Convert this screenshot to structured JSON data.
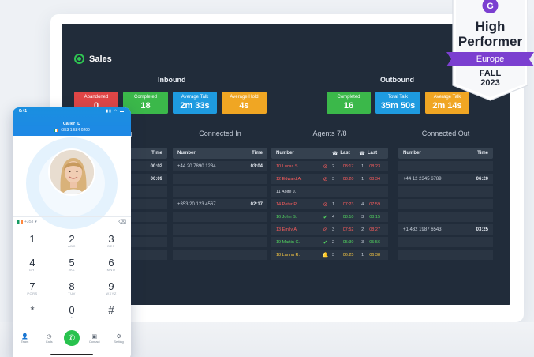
{
  "dashboard": {
    "title": "Sales",
    "inbound": {
      "title": "Inbound",
      "tiles": [
        {
          "label": "Abandoned",
          "value": "0",
          "color": "#e04646"
        },
        {
          "label": "Completed",
          "value": "18",
          "color": "#3bb84a"
        },
        {
          "label": "Average Talk",
          "value": "2m 33s",
          "color": "#1e9be0"
        },
        {
          "label": "Average Hold",
          "value": "4s",
          "color": "#f0a623"
        }
      ]
    },
    "outbound": {
      "title": "Outbound",
      "tiles": [
        {
          "label": "Completed",
          "value": "16",
          "color": "#3bb84a"
        },
        {
          "label": "Total Talk",
          "value": "35m 50s",
          "color": "#1e9be0"
        },
        {
          "label": "Average Talk",
          "value": "2m 14s",
          "color": "#f0a623"
        }
      ]
    },
    "waiting": {
      "title_visible": "g",
      "time_header": "Time",
      "rows": [
        "00:02",
        "00:09",
        "",
        "",
        "",
        "",
        "",
        ""
      ]
    },
    "connected_in": {
      "title": "Connected In",
      "headers": {
        "number": "Number",
        "time": "Time"
      },
      "rows": [
        {
          "number": "+44 20 7890 1234",
          "time": "03:04"
        },
        {
          "number": "",
          "time": ""
        },
        {
          "number": "",
          "time": ""
        },
        {
          "number": "+353 20 123 4567",
          "time": "02:17"
        },
        {
          "number": "",
          "time": ""
        },
        {
          "number": "",
          "time": ""
        },
        {
          "number": "",
          "time": ""
        },
        {
          "number": "",
          "time": ""
        }
      ]
    },
    "agents": {
      "title": "Agents 7/8",
      "headers": {
        "number": "Number",
        "last1": "Last",
        "last2": "Last"
      },
      "rows": [
        {
          "name": "10 Lucas S.",
          "status": "red",
          "icon": "⊘",
          "c1": "2",
          "t1": "08:17",
          "c2": "1",
          "t2": "08:23"
        },
        {
          "name": "12 Edward A.",
          "status": "red",
          "icon": "⊘",
          "c1": "3",
          "t1": "08:20",
          "c2": "1",
          "t2": "08:34"
        },
        {
          "name": "11 Aoife J.",
          "status": "wht",
          "icon": "",
          "c1": "",
          "t1": "",
          "c2": "",
          "t2": ""
        },
        {
          "name": "14 Peter P.",
          "status": "red",
          "icon": "⊘",
          "c1": "1",
          "t1": "07:23",
          "c2": "4",
          "t2": "07:59"
        },
        {
          "name": "16 John S.",
          "status": "grn",
          "icon": "✔",
          "c1": "4",
          "t1": "08:10",
          "c2": "3",
          "t2": "08:15"
        },
        {
          "name": "13 Emily A.",
          "status": "red",
          "icon": "⊘",
          "c1": "3",
          "t1": "07:52",
          "c2": "2",
          "t2": "08:27"
        },
        {
          "name": "19 Martin G.",
          "status": "grn",
          "icon": "✔",
          "c1": "2",
          "t1": "05:30",
          "c2": "3",
          "t2": "05:56"
        },
        {
          "name": "18 Lanna R.",
          "status": "ylw",
          "icon": "🔔",
          "c1": "3",
          "t1": "06:25",
          "c2": "1",
          "t2": "06:38"
        }
      ]
    },
    "connected_out": {
      "title": "Connected Out",
      "headers": {
        "number": "Number",
        "time": "Time"
      },
      "rows": [
        {
          "number": "",
          "time": ""
        },
        {
          "number": "+44 12 2345 6789",
          "time": "06:20"
        },
        {
          "number": "",
          "time": ""
        },
        {
          "number": "",
          "time": ""
        },
        {
          "number": "",
          "time": ""
        },
        {
          "number": "+1 432 1987 6543",
          "time": "03:25"
        },
        {
          "number": "",
          "time": ""
        },
        {
          "number": "",
          "time": ""
        }
      ]
    }
  },
  "phone": {
    "time": "9:41",
    "caller_label": "Caller ID",
    "caller_number": "+353 1 584 0200",
    "input_prefix": "+353",
    "keys": [
      {
        "d": "1",
        "l": ""
      },
      {
        "d": "2",
        "l": "ABC"
      },
      {
        "d": "3",
        "l": "DEF"
      },
      {
        "d": "4",
        "l": "GHI"
      },
      {
        "d": "5",
        "l": "JKL"
      },
      {
        "d": "6",
        "l": "MNO"
      },
      {
        "d": "7",
        "l": "PQRS"
      },
      {
        "d": "8",
        "l": "TUV"
      },
      {
        "d": "9",
        "l": "WXYZ"
      },
      {
        "d": "*",
        "l": ""
      },
      {
        "d": "0",
        "l": "+"
      },
      {
        "d": "#",
        "l": ""
      }
    ],
    "nav": [
      {
        "label": "Team",
        "icon": "person-icon"
      },
      {
        "label": "Calls",
        "icon": "clock-icon"
      },
      {
        "label": "",
        "icon": "phone-icon"
      },
      {
        "label": "Contact",
        "icon": "contact-icon"
      },
      {
        "label": "Setting",
        "icon": "gear-icon"
      }
    ]
  },
  "badge": {
    "line1": "High",
    "line2": "Performer",
    "region": "Europe",
    "season": "FALL",
    "year": "2023",
    "accent": "#7b3fd0"
  }
}
